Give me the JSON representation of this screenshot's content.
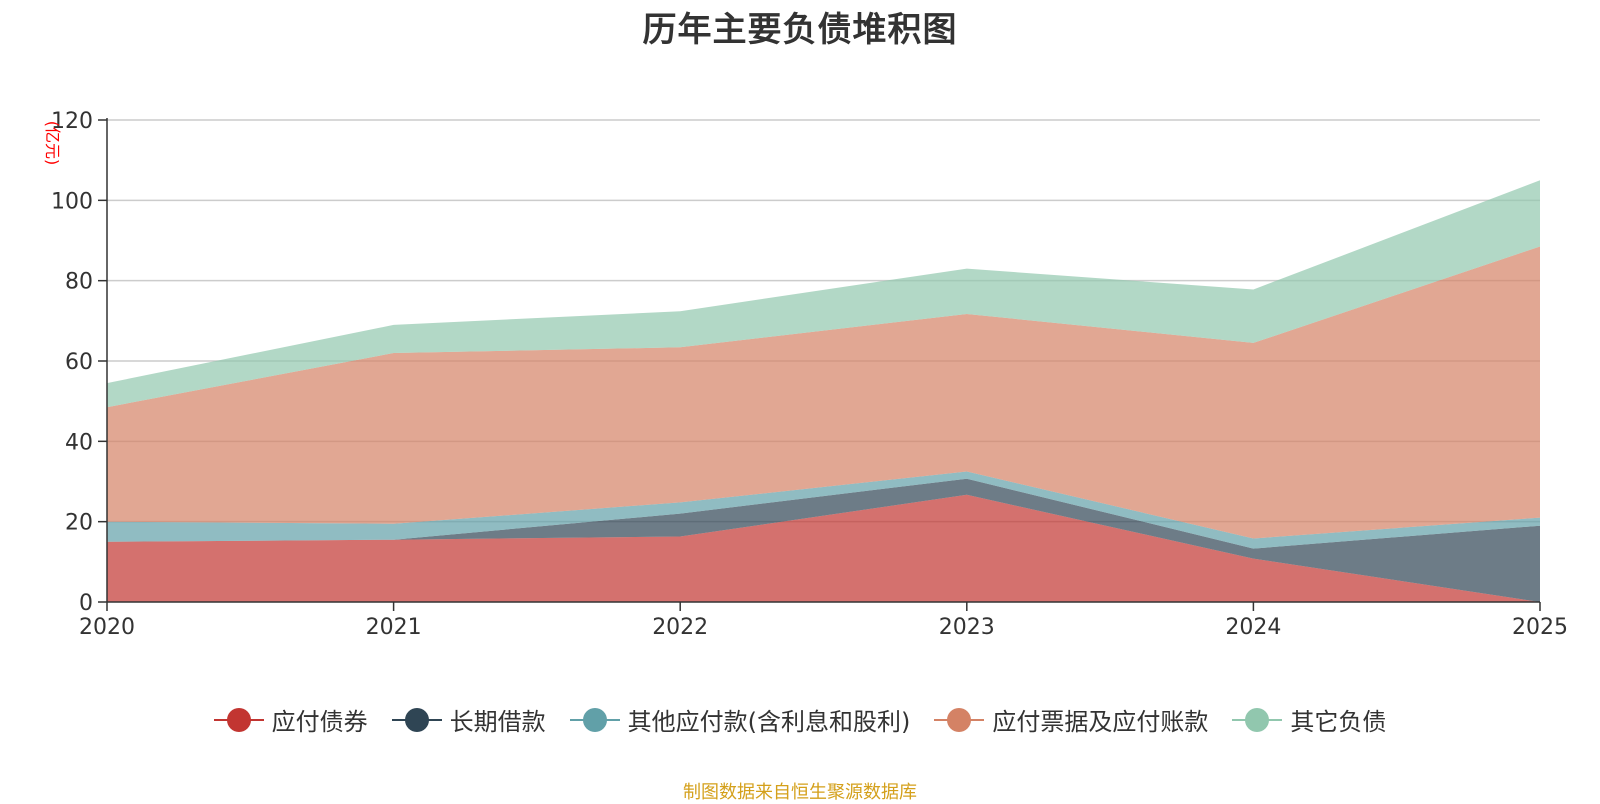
{
  "chart_data": {
    "type": "area",
    "stacked": true,
    "title": "历年主要负债堆积图",
    "ylabel": "(亿元)",
    "xlabel": "",
    "ylim": [
      0,
      120
    ],
    "yticks": [
      0,
      20,
      40,
      60,
      80,
      100,
      120
    ],
    "categories": [
      "2020",
      "2021",
      "2022",
      "2023",
      "2024",
      "2025"
    ],
    "grid": true,
    "legend_position": "bottom",
    "series": [
      {
        "name": "应付债券",
        "color": "#c23531",
        "values": [
          15.0,
          15.5,
          16.3,
          26.7,
          10.8,
          0.0
        ]
      },
      {
        "name": "长期借款",
        "color": "#2f4554",
        "values": [
          0.0,
          0.0,
          5.7,
          4.0,
          2.5,
          19.0
        ]
      },
      {
        "name": "其他应付款(含利息和股利)",
        "color": "#61a0a8",
        "values": [
          5.0,
          4.0,
          2.8,
          1.8,
          2.5,
          2.0
        ]
      },
      {
        "name": "应付票据及应付账款",
        "color": "#d48265",
        "values": [
          28.5,
          42.5,
          38.6,
          39.2,
          48.7,
          67.5
        ]
      },
      {
        "name": "其它负债",
        "color": "#91c7ae",
        "values": [
          6.0,
          7.0,
          9.0,
          11.3,
          13.3,
          16.5
        ]
      }
    ],
    "source": "制图数据来自恒生聚源数据库"
  }
}
